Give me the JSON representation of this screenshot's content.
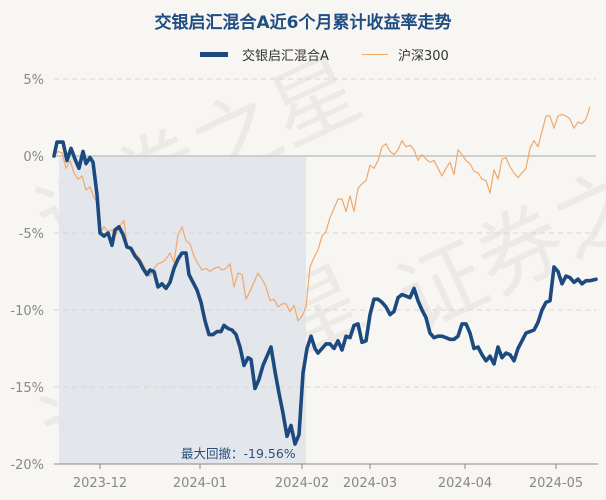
{
  "header": {
    "title": "交银启汇混合A近6个月累计收益率走势"
  },
  "legend": {
    "items": [
      {
        "label": "交银启汇混合A",
        "color": "#1c4a7e",
        "style": "thick"
      },
      {
        "label": "沪深300",
        "color": "#f0a86a",
        "style": "thin"
      }
    ]
  },
  "annotation": {
    "max_drawdown_label": "最大回撤：-19.56%"
  },
  "watermark": "证券之星",
  "colors": {
    "fund_line": "#1c4a7e",
    "index_line": "#f0a86a",
    "drawdown_fill": "#e2e6ea",
    "background": "#f8f6f3"
  },
  "chart_data": {
    "type": "line",
    "title": "交银启汇混合A近6个月累计收益率走势",
    "xlabel": "",
    "ylabel": "",
    "ylim": [
      -20,
      5
    ],
    "yticks": [
      "5%",
      "0%",
      "-5%",
      "-10%",
      "-15%",
      "-20%"
    ],
    "xticks": [
      "2023-12",
      "2024-01",
      "2024-02",
      "2024-03",
      "2024-04",
      "2024-05"
    ],
    "grid": "horizontal dashed",
    "legend_position": "top",
    "max_drawdown": "-19.56%",
    "series": [
      {
        "name": "交银启汇混合A",
        "points": [
          [
            54,
            0
          ],
          [
            57,
            0.9
          ],
          [
            63,
            0.9
          ],
          [
            67,
            -0.3
          ],
          [
            71,
            0.5
          ],
          [
            75,
            -0.2
          ],
          [
            79,
            -0.8
          ],
          [
            83,
            0.3
          ],
          [
            86,
            -0.5
          ],
          [
            90,
            -0.1
          ],
          [
            93,
            -0.4
          ],
          [
            97,
            -2.5
          ],
          [
            100,
            -5.0
          ],
          [
            104,
            -5.2
          ],
          [
            108,
            -5.0
          ],
          [
            112,
            -5.8
          ],
          [
            115,
            -4.8
          ],
          [
            119,
            -4.6
          ],
          [
            123,
            -5.1
          ],
          [
            127,
            -5.9
          ],
          [
            131,
            -6.0
          ],
          [
            135,
            -6.5
          ],
          [
            139,
            -6.8
          ],
          [
            143,
            -7.3
          ],
          [
            147,
            -7.7
          ],
          [
            150,
            -7.4
          ],
          [
            154,
            -7.5
          ],
          [
            158,
            -8.5
          ],
          [
            162,
            -8.3
          ],
          [
            166,
            -8.6
          ],
          [
            170,
            -8.2
          ],
          [
            174,
            -7.3
          ],
          [
            178,
            -6.7
          ],
          [
            182,
            -6.3
          ],
          [
            186,
            -6.3
          ],
          [
            189,
            -7.7
          ],
          [
            193,
            -8.2
          ],
          [
            197,
            -8.7
          ],
          [
            201,
            -9.5
          ],
          [
            205,
            -10.7
          ],
          [
            209,
            -11.6
          ],
          [
            213,
            -11.6
          ],
          [
            217,
            -11.4
          ],
          [
            221,
            -11.4
          ],
          [
            224,
            -11.0
          ],
          [
            228,
            -11.2
          ],
          [
            232,
            -11.3
          ],
          [
            236,
            -11.6
          ],
          [
            240,
            -12.4
          ],
          [
            244,
            -13.6
          ],
          [
            248,
            -13.1
          ],
          [
            251,
            -13.2
          ],
          [
            255,
            -15.1
          ],
          [
            259,
            -14.5
          ],
          [
            263,
            -13.6
          ],
          [
            267,
            -13.0
          ],
          [
            271,
            -12.4
          ],
          [
            275,
            -14.0
          ],
          [
            279,
            -15.4
          ],
          [
            283,
            -16.7
          ],
          [
            287,
            -18.2
          ],
          [
            291,
            -17.5
          ],
          [
            295,
            -18.7
          ],
          [
            299,
            -18.1
          ],
          [
            303,
            -14.1
          ],
          [
            307,
            -12.5
          ],
          [
            311,
            -11.7
          ],
          [
            315,
            -12.5
          ],
          [
            318,
            -12.8
          ],
          [
            322,
            -12.5
          ],
          [
            326,
            -12.2
          ],
          [
            330,
            -12.2
          ],
          [
            334,
            -12.5
          ],
          [
            338,
            -12.0
          ],
          [
            342,
            -12.6
          ],
          [
            346,
            -11.7
          ],
          [
            350,
            -11.8
          ],
          [
            354,
            -11.0
          ],
          [
            358,
            -10.9
          ],
          [
            362,
            -12.1
          ],
          [
            366,
            -12.0
          ],
          [
            370,
            -10.3
          ],
          [
            374,
            -9.3
          ],
          [
            378,
            -9.3
          ],
          [
            382,
            -9.5
          ],
          [
            386,
            -9.8
          ],
          [
            390,
            -10.3
          ],
          [
            394,
            -10.1
          ],
          [
            398,
            -9.2
          ],
          [
            402,
            -9.0
          ],
          [
            406,
            -9.1
          ],
          [
            410,
            -9.2
          ],
          [
            414,
            -8.6
          ],
          [
            418,
            -9.4
          ],
          [
            422,
            -10.0
          ],
          [
            426,
            -10.5
          ],
          [
            430,
            -11.5
          ],
          [
            434,
            -11.8
          ],
          [
            438,
            -11.7
          ],
          [
            442,
            -11.7
          ],
          [
            446,
            -11.8
          ],
          [
            450,
            -11.9
          ],
          [
            454,
            -11.9
          ],
          [
            458,
            -11.7
          ],
          [
            462,
            -10.9
          ],
          [
            466,
            -10.9
          ],
          [
            470,
            -11.5
          ],
          [
            474,
            -12.5
          ],
          [
            478,
            -12.4
          ],
          [
            482,
            -12.9
          ],
          [
            486,
            -13.3
          ],
          [
            490,
            -13.0
          ],
          [
            494,
            -13.5
          ],
          [
            498,
            -12.4
          ],
          [
            502,
            -13.1
          ],
          [
            506,
            -12.8
          ],
          [
            510,
            -12.9
          ],
          [
            514,
            -13.3
          ],
          [
            518,
            -12.5
          ],
          [
            522,
            -12.0
          ],
          [
            526,
            -11.5
          ],
          [
            530,
            -11.4
          ],
          [
            534,
            -11.3
          ],
          [
            538,
            -10.8
          ],
          [
            542,
            -10.0
          ],
          [
            546,
            -9.5
          ],
          [
            550,
            -9.4
          ],
          [
            554,
            -7.2
          ],
          [
            558,
            -7.5
          ],
          [
            562,
            -8.3
          ],
          [
            566,
            -7.8
          ],
          [
            570,
            -7.9
          ],
          [
            574,
            -8.2
          ],
          [
            578,
            -8.0
          ],
          [
            582,
            -8.3
          ],
          [
            586,
            -8.1
          ],
          [
            590,
            -8.1
          ],
          [
            596,
            -8.0
          ]
        ]
      },
      {
        "name": "沪深300",
        "points": [
          [
            54,
            0
          ],
          [
            58,
            0.3
          ],
          [
            62,
            0.2
          ],
          [
            66,
            -0.8
          ],
          [
            70,
            -0.3
          ],
          [
            74,
            -1.1
          ],
          [
            78,
            -1.5
          ],
          [
            82,
            -1.3
          ],
          [
            86,
            -2.2
          ],
          [
            90,
            -2.0
          ],
          [
            94,
            -2.7
          ],
          [
            97,
            -3.0
          ],
          [
            100,
            -5.0
          ],
          [
            104,
            -4.6
          ],
          [
            108,
            -4.9
          ],
          [
            112,
            -4.8
          ],
          [
            116,
            -5.1
          ],
          [
            120,
            -4.5
          ],
          [
            124,
            -4.2
          ],
          [
            127,
            -5.8
          ],
          [
            131,
            -5.9
          ],
          [
            135,
            -6.3
          ],
          [
            139,
            -6.6
          ],
          [
            143,
            -7.0
          ],
          [
            147,
            -7.6
          ],
          [
            150,
            -7.8
          ],
          [
            154,
            -7.3
          ],
          [
            158,
            -7.0
          ],
          [
            162,
            -6.9
          ],
          [
            166,
            -6.7
          ],
          [
            170,
            -6.3
          ],
          [
            174,
            -6.9
          ],
          [
            178,
            -5.1
          ],
          [
            182,
            -4.6
          ],
          [
            186,
            -5.5
          ],
          [
            190,
            -5.7
          ],
          [
            194,
            -6.5
          ],
          [
            198,
            -7.0
          ],
          [
            202,
            -7.4
          ],
          [
            206,
            -7.3
          ],
          [
            210,
            -7.5
          ],
          [
            214,
            -7.3
          ],
          [
            218,
            -7.2
          ],
          [
            222,
            -7.4
          ],
          [
            226,
            -7.3
          ],
          [
            230,
            -7.0
          ],
          [
            234,
            -8.5
          ],
          [
            238,
            -7.6
          ],
          [
            242,
            -7.7
          ],
          [
            246,
            -9.3
          ],
          [
            250,
            -8.8
          ],
          [
            254,
            -8.2
          ],
          [
            258,
            -7.6
          ],
          [
            262,
            -8.0
          ],
          [
            266,
            -8.5
          ],
          [
            270,
            -9.4
          ],
          [
            274,
            -9.3
          ],
          [
            278,
            -9.8
          ],
          [
            282,
            -9.6
          ],
          [
            286,
            -9.6
          ],
          [
            290,
            -10.1
          ],
          [
            294,
            -9.7
          ],
          [
            298,
            -10.7
          ],
          [
            302,
            -10.4
          ],
          [
            306,
            -9.8
          ],
          [
            310,
            -7.2
          ],
          [
            314,
            -6.6
          ],
          [
            318,
            -6.1
          ],
          [
            322,
            -5.2
          ],
          [
            326,
            -4.9
          ],
          [
            330,
            -4.0
          ],
          [
            334,
            -3.4
          ],
          [
            338,
            -2.8
          ],
          [
            342,
            -2.8
          ],
          [
            346,
            -3.6
          ],
          [
            350,
            -2.6
          ],
          [
            354,
            -3.6
          ],
          [
            358,
            -2.1
          ],
          [
            362,
            -1.8
          ],
          [
            366,
            -1.6
          ],
          [
            370,
            -0.6
          ],
          [
            374,
            -0.8
          ],
          [
            378,
            -0.3
          ],
          [
            382,
            0.6
          ],
          [
            386,
            0.8
          ],
          [
            390,
            0.3
          ],
          [
            394,
            0.1
          ],
          [
            398,
            0.4
          ],
          [
            402,
            1.0
          ],
          [
            406,
            0.6
          ],
          [
            410,
            0.7
          ],
          [
            414,
            0.4
          ],
          [
            418,
            -0.3
          ],
          [
            422,
            0.1
          ],
          [
            426,
            -0.2
          ],
          [
            430,
            -0.4
          ],
          [
            434,
            -0.3
          ],
          [
            438,
            -0.8
          ],
          [
            442,
            -1.3
          ],
          [
            446,
            -0.8
          ],
          [
            450,
            -0.4
          ],
          [
            454,
            -1.2
          ],
          [
            458,
            0.4
          ],
          [
            462,
            0.1
          ],
          [
            466,
            -0.3
          ],
          [
            470,
            -0.5
          ],
          [
            474,
            -1.0
          ],
          [
            478,
            -1.1
          ],
          [
            482,
            -1.5
          ],
          [
            486,
            -1.6
          ],
          [
            490,
            -2.4
          ],
          [
            494,
            -0.9
          ],
          [
            498,
            -1.5
          ],
          [
            502,
            -0.2
          ],
          [
            506,
            -0.1
          ],
          [
            510,
            -0.7
          ],
          [
            514,
            -1.1
          ],
          [
            518,
            -1.4
          ],
          [
            522,
            -1.1
          ],
          [
            526,
            -0.8
          ],
          [
            530,
            0.5
          ],
          [
            534,
            1.0
          ],
          [
            538,
            0.6
          ],
          [
            542,
            1.6
          ],
          [
            546,
            2.6
          ],
          [
            550,
            2.6
          ],
          [
            554,
            1.8
          ],
          [
            558,
            2.6
          ],
          [
            562,
            2.7
          ],
          [
            566,
            2.6
          ],
          [
            570,
            2.4
          ],
          [
            574,
            1.8
          ],
          [
            578,
            2.2
          ],
          [
            582,
            2.1
          ],
          [
            586,
            2.4
          ],
          [
            590,
            3.2
          ]
        ]
      }
    ]
  }
}
